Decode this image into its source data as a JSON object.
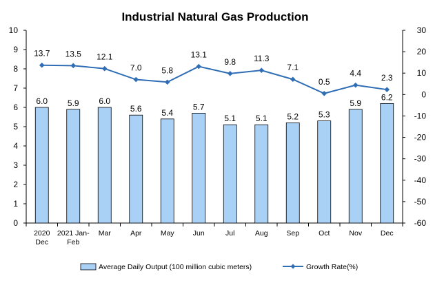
{
  "chart_data": {
    "type": "bar+line",
    "title": "Industrial Natural Gas Production",
    "categories": [
      [
        "2020",
        "Dec"
      ],
      [
        "2021 Jan-",
        "Feb"
      ],
      [
        "Mar"
      ],
      [
        "Apr"
      ],
      [
        "May"
      ],
      [
        "Jun"
      ],
      [
        "Jul"
      ],
      [
        "Aug"
      ],
      [
        "Sep"
      ],
      [
        "Oct"
      ],
      [
        "Nov"
      ],
      [
        "Dec"
      ]
    ],
    "series": [
      {
        "name": "Average Daily Output (100 million cubic meters)",
        "type": "bar",
        "axis": "left",
        "color": "#a9d0f5",
        "border": "#000000",
        "values": [
          6.0,
          5.9,
          6.0,
          5.6,
          5.4,
          5.7,
          5.1,
          5.1,
          5.2,
          5.3,
          5.9,
          6.2
        ],
        "labels": [
          "6.0",
          "5.9",
          "6.0",
          "5.6",
          "5.4",
          "5.7",
          "5.1",
          "5.1",
          "5.2",
          "5.3",
          "5.9",
          "6.2"
        ]
      },
      {
        "name": "Growth Rate(%)",
        "type": "line",
        "axis": "right",
        "color": "#2f6db5",
        "values": [
          13.7,
          13.5,
          12.1,
          7.0,
          5.8,
          13.1,
          9.8,
          11.3,
          7.1,
          0.5,
          4.4,
          2.3
        ],
        "labels": [
          "13.7",
          "13.5",
          "12.1",
          "7.0",
          "5.8",
          "13.1",
          "9.8",
          "11.3",
          "7.1",
          "0.5",
          "4.4",
          "2.3"
        ]
      }
    ],
    "y_left": {
      "min": 0,
      "max": 10,
      "step": 1,
      "ticks": [
        "0",
        "1",
        "2",
        "3",
        "4",
        "5",
        "6",
        "7",
        "8",
        "9",
        "10"
      ]
    },
    "y_right": {
      "min": -60,
      "max": 30,
      "step": 10,
      "ticks": [
        "-60",
        "-50",
        "-40",
        "-30",
        "-20",
        "-10",
        "0",
        "10",
        "20",
        "30"
      ]
    },
    "grid": false,
    "legend_position": "bottom"
  }
}
